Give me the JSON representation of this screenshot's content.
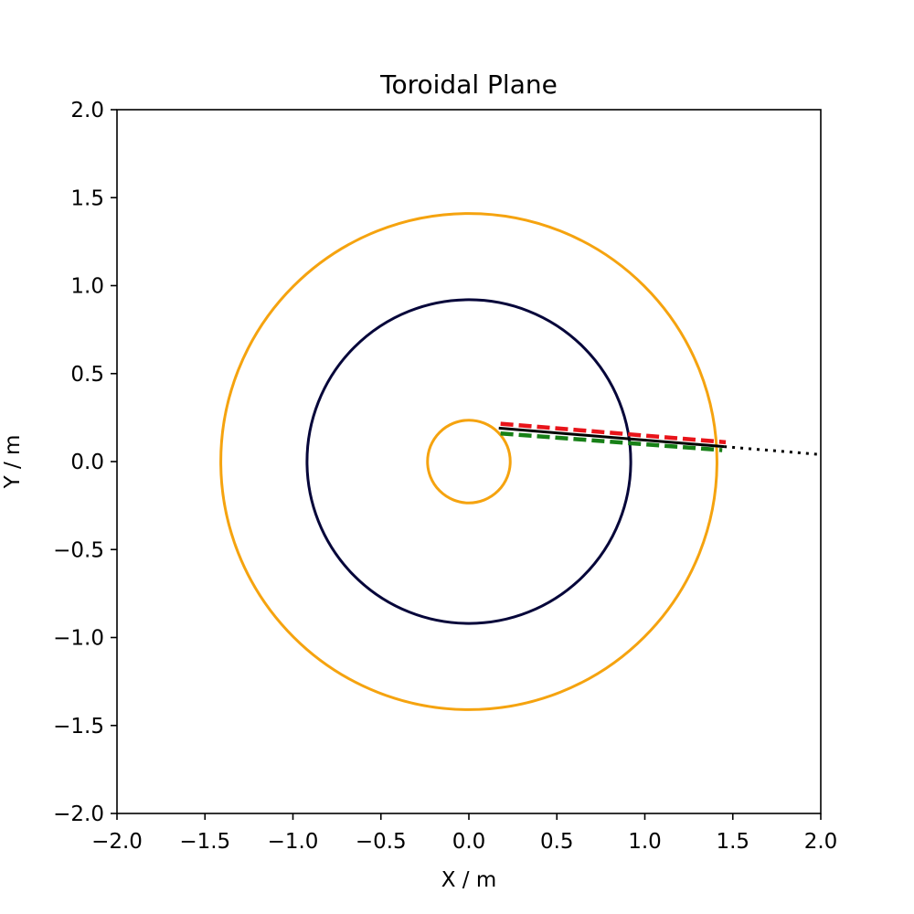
{
  "chart_data": {
    "type": "line",
    "title": "Toroidal Plane",
    "xlabel": "X / m",
    "ylabel": "Y / m",
    "xlim": [
      -2.0,
      2.0
    ],
    "ylim": [
      -2.0,
      2.0
    ],
    "xticks": [
      -2.0,
      -1.5,
      -1.0,
      -0.5,
      0.0,
      0.5,
      1.0,
      1.5,
      2.0
    ],
    "yticks": [
      -2.0,
      -1.5,
      -1.0,
      -0.5,
      0.0,
      0.5,
      1.0,
      1.5,
      2.0
    ],
    "xtick_labels": [
      "−2.0",
      "−1.5",
      "−1.0",
      "−0.5",
      "0.0",
      "0.5",
      "1.0",
      "1.5",
      "2.0"
    ],
    "ytick_labels": [
      "−2.0",
      "−1.5",
      "−1.0",
      "−0.5",
      "0.0",
      "0.5",
      "1.0",
      "1.5",
      "2.0"
    ],
    "grid": false,
    "aspect": "equal",
    "circles": [
      {
        "cx": 0.0,
        "cy": 0.0,
        "r": 1.41,
        "color": "#f5a30f"
      },
      {
        "cx": 0.0,
        "cy": 0.0,
        "r": 0.92,
        "color": "#06063a"
      },
      {
        "cx": 0.0,
        "cy": 0.0,
        "r": 0.235,
        "color": "#f5a30f"
      }
    ],
    "series": [
      {
        "x": [
          0.18,
          1.46
        ],
        "y": [
          0.215,
          0.11
        ],
        "color": "#e8141a",
        "style": "dashed"
      },
      {
        "x": [
          0.18,
          1.44
        ],
        "y": [
          0.16,
          0.065
        ],
        "color": "#178017",
        "style": "dashed"
      },
      {
        "x": [
          0.17,
          1.45
        ],
        "y": [
          0.19,
          0.085
        ],
        "color": "#000000",
        "style": "solid"
      },
      {
        "x": [
          1.45,
          2.0
        ],
        "y": [
          0.085,
          0.04
        ],
        "color": "#000000",
        "style": "dotted"
      }
    ]
  }
}
